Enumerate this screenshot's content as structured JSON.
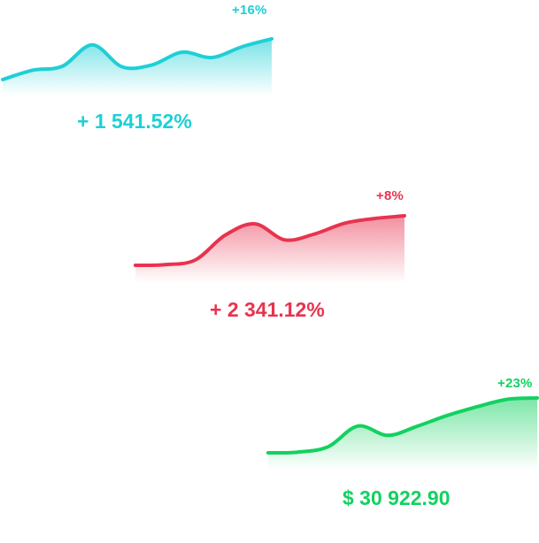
{
  "widgets": [
    {
      "id": "w1",
      "badge": "+16%",
      "value": "+ 1 541.52%",
      "color": "#1ECFD6",
      "series": [
        0,
        14,
        20,
        52,
        19,
        22,
        41,
        33,
        49,
        61
      ]
    },
    {
      "id": "w2",
      "badge": "+8%",
      "value": "+ 2 341.12%",
      "color": "#E8334F",
      "series": [
        0,
        1,
        8,
        45,
        62,
        38,
        47,
        63,
        70,
        74
      ]
    },
    {
      "id": "w3",
      "badge": "+23%",
      "value": "$ 30 922.90",
      "color": "#12D160",
      "series": [
        0,
        1,
        9,
        40,
        26,
        40,
        56,
        69,
        80,
        82
      ]
    }
  ]
}
